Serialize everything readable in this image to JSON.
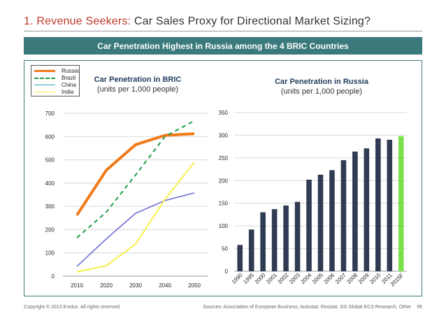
{
  "slide": {
    "title_number": "1.",
    "title_accent": "Revenue Seekers:",
    "title_rest": "Car Sales Proxy for Directional Market Sizing?",
    "banner": "Car Penetration Highest in Russia among the 4 BRIC Countries"
  },
  "footer": {
    "copyright": "Copyright © 2013 Exolus. All rights reserved.",
    "sources": "Sources: Association of European Business; Autostat; Rosstat, GS Global ECS Research, Other",
    "page": "95"
  },
  "colors": {
    "russia": "#f07a1a",
    "brazil": "#1e9e4a",
    "china": "#7171d6",
    "india": "#f5ef3a",
    "bar": "#2e3b52",
    "bar_highlight": "#7ae04a",
    "frame": "#3b7a7c"
  },
  "chart_data": [
    {
      "type": "line",
      "title": "Car Penetration in BRIC",
      "subtitle": "(units per 1,000 people)",
      "x": [
        2010,
        2020,
        2030,
        2040,
        2050
      ],
      "x_tick_labels": [
        "2010",
        "2020",
        "2030",
        "2040",
        "2050"
      ],
      "ylim": [
        0,
        700
      ],
      "y_ticks": [
        0,
        100,
        200,
        300,
        400,
        500,
        600,
        700
      ],
      "y_tick_labels": [
        "0",
        "100",
        "200",
        "300",
        "400",
        "500",
        "600",
        "700"
      ],
      "grid": true,
      "legend": "top-left",
      "series": [
        {
          "name": "Russia",
          "values": [
            262,
            455,
            565,
            605,
            612
          ],
          "style": "solid-thick"
        },
        {
          "name": "Brazil",
          "values": [
            165,
            275,
            435,
            600,
            668
          ],
          "style": "dashed"
        },
        {
          "name": "China",
          "values": [
            42,
            160,
            270,
            325,
            358
          ],
          "style": "solid"
        },
        {
          "name": "India",
          "values": [
            18,
            45,
            138,
            330,
            490
          ],
          "style": "solid"
        }
      ]
    },
    {
      "type": "bar",
      "title": "Car Penetration in Russia",
      "subtitle": "(units per 1,000 people)",
      "categories": [
        "1990",
        "1995",
        "2000",
        "2001",
        "2002",
        "2003",
        "2004",
        "2005",
        "2006",
        "2007",
        "2008",
        "2009",
        "2010",
        "2011",
        "2015F"
      ],
      "values": [
        58,
        92,
        130,
        137,
        145,
        153,
        202,
        213,
        223,
        245,
        264,
        271,
        293,
        290,
        298
      ],
      "ylim": [
        0,
        350
      ],
      "y_ticks": [
        0,
        50,
        100,
        150,
        200,
        250,
        300,
        350
      ],
      "y_tick_labels": [
        "0",
        "50",
        "100",
        "150",
        "200",
        "250",
        "300",
        "350"
      ],
      "grid": true,
      "highlight_category": "2015F"
    }
  ]
}
